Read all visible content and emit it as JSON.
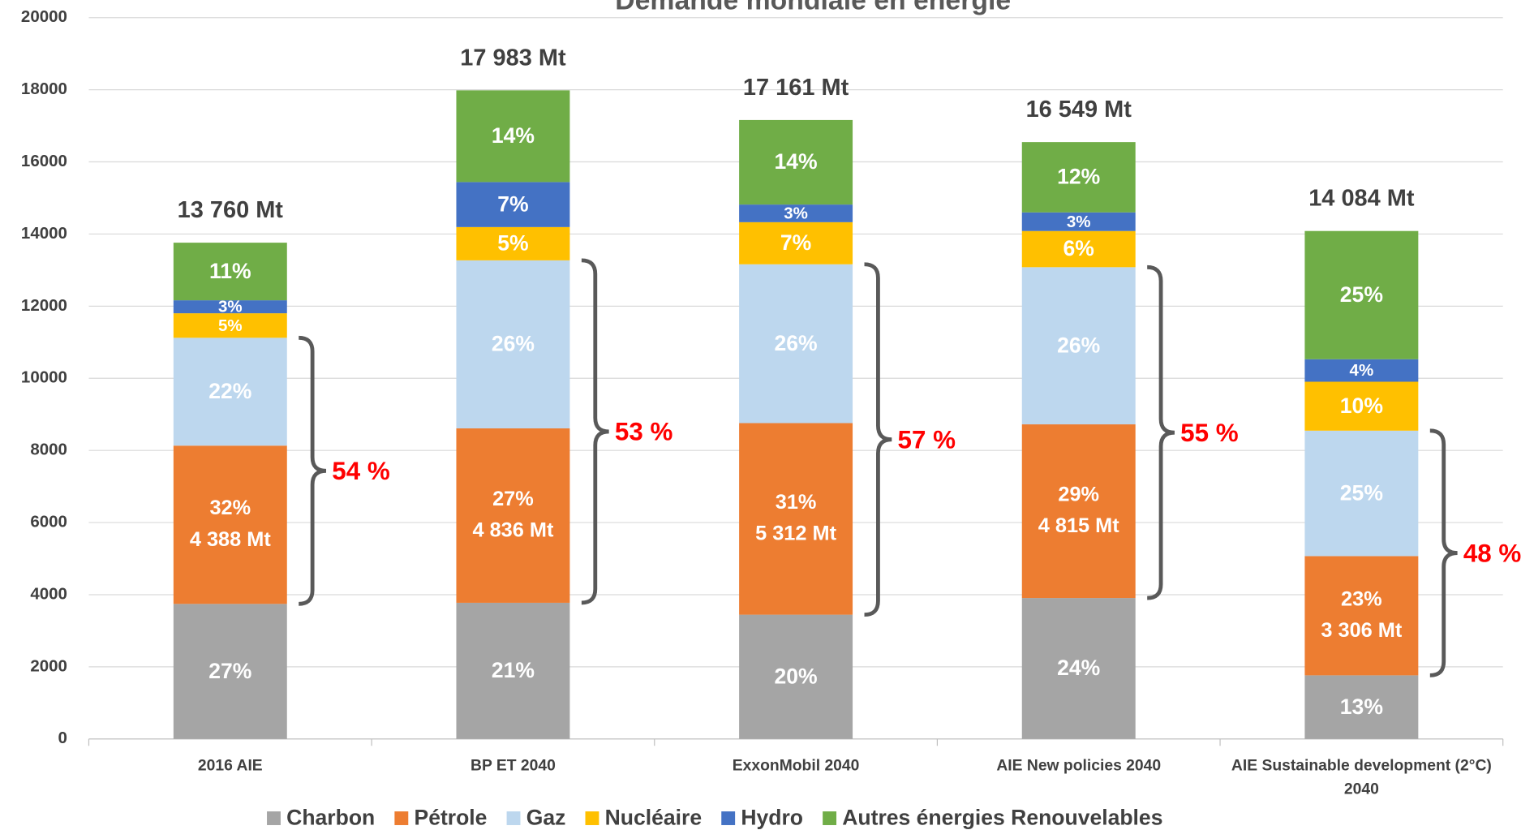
{
  "chart_data": {
    "type": "stacked_bar",
    "title": "Demande mondiale en énergie",
    "categories": [
      "2016 AIE",
      "BP ET 2040",
      "ExxonMobil 2040",
      "AIE New policies 2040",
      "AIE Sustainable development (2°C) 2040"
    ],
    "series": [
      {
        "name": "Charbon",
        "color": "#a5a5a5",
        "values": [
          3745,
          3776,
          3446,
          3908,
          1764
        ],
        "share_labels": [
          "27%",
          "21%",
          "20%",
          "24%",
          "13%"
        ]
      },
      {
        "name": "Pétrole",
        "color": "#ed7d31",
        "values": [
          4388,
          4836,
          5312,
          4815,
          3306
        ],
        "share_labels": [
          "32%",
          "27%",
          "31%",
          "29%",
          "23%"
        ],
        "value_labels": [
          "4 388 Mt",
          "4 836 Mt",
          "5 312 Mt",
          "4 815 Mt",
          "3 306 Mt"
        ]
      },
      {
        "name": "Gaz",
        "color": "#bdd7ee",
        "values": [
          2990,
          4658,
          4403,
          4357,
          3478
        ],
        "share_labels": [
          "22%",
          "26%",
          "26%",
          "26%",
          "25%"
        ]
      },
      {
        "name": "Nucléaire",
        "color": "#ffc000",
        "values": [
          680,
          923,
          1167,
          1004,
          1357
        ],
        "share_labels": [
          "5%",
          "5%",
          "7%",
          "6%",
          "10%"
        ]
      },
      {
        "name": "Hydro",
        "color": "#4472c4",
        "values": [
          360,
          1248,
          489,
          516,
          624
        ],
        "share_labels": [
          "3%",
          "7%",
          "3%",
          "3%",
          "4%"
        ]
      },
      {
        "name": "Autres énergies Renouvelables",
        "color": "#70ad47",
        "values": [
          1597,
          2542,
          2344,
          1949,
          3555
        ],
        "share_labels": [
          "11%",
          "14%",
          "14%",
          "12%",
          "25%"
        ]
      }
    ],
    "totals": {
      "values": [
        13760,
        17983,
        17161,
        16549,
        14084
      ],
      "value_labels": [
        "13 760 Mt",
        "17 983 Mt",
        "17 161 Mt",
        "16 549 Mt",
        "14 084 Mt"
      ]
    },
    "brace_labels": [
      "54 %",
      "53 %",
      "57 %",
      "55 %",
      "48 %"
    ],
    "ylim": [
      0,
      20000
    ],
    "yticks": [
      0,
      2000,
      4000,
      6000,
      8000,
      10000,
      12000,
      14000,
      16000,
      18000,
      20000
    ],
    "grid": true,
    "legend": "bottom"
  }
}
